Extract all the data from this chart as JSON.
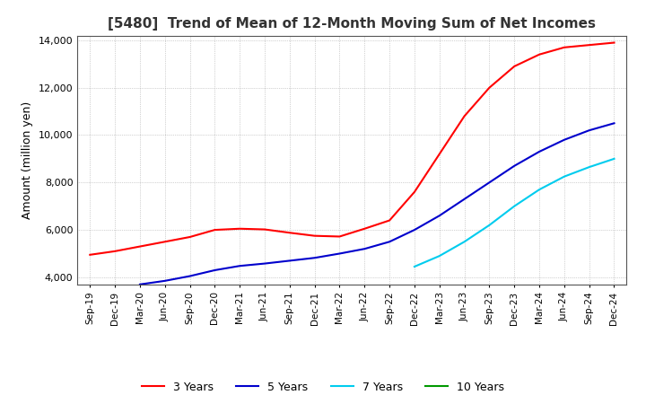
{
  "title": "[5480]  Trend of Mean of 12-Month Moving Sum of Net Incomes",
  "ylabel": "Amount (million yen)",
  "ylim": [
    3700,
    14200
  ],
  "yticks": [
    4000,
    6000,
    8000,
    10000,
    12000,
    14000
  ],
  "background_color": "#ffffff",
  "grid_color": "#aaaaaa",
  "line_colors": {
    "3y": "#ff0000",
    "5y": "#0000cc",
    "7y": "#00ccee",
    "10y": "#009900"
  },
  "legend_labels": [
    "3 Years",
    "5 Years",
    "7 Years",
    "10 Years"
  ],
  "x_labels": [
    "Sep-19",
    "Dec-19",
    "Mar-20",
    "Jun-20",
    "Sep-20",
    "Dec-20",
    "Mar-21",
    "Jun-21",
    "Sep-21",
    "Dec-21",
    "Mar-22",
    "Jun-22",
    "Sep-22",
    "Dec-22",
    "Mar-23",
    "Jun-23",
    "Sep-23",
    "Dec-23",
    "Mar-24",
    "Jun-24",
    "Sep-24",
    "Dec-24"
  ],
  "series_3y": [
    4950,
    5100,
    5300,
    5500,
    5700,
    6000,
    6050,
    6020,
    5880,
    5750,
    5720,
    6050,
    6400,
    7600,
    9200,
    10800,
    12000,
    12900,
    13400,
    13700,
    13800,
    13900
  ],
  "series_5y": [
    null,
    null,
    3700,
    3850,
    4050,
    4300,
    4480,
    4580,
    4700,
    4820,
    5000,
    5200,
    5500,
    6000,
    6600,
    7300,
    8000,
    8700,
    9300,
    9800,
    10200,
    10500
  ],
  "series_7y": [
    null,
    null,
    null,
    null,
    null,
    null,
    null,
    null,
    null,
    null,
    null,
    null,
    null,
    4450,
    4900,
    5500,
    6200,
    7000,
    7700,
    8250,
    8650,
    9000
  ],
  "series_10y": [
    null,
    null,
    null,
    null,
    null,
    null,
    null,
    null,
    null,
    null,
    null,
    null,
    null,
    null,
    null,
    null,
    null,
    null,
    null,
    null,
    null,
    null
  ]
}
